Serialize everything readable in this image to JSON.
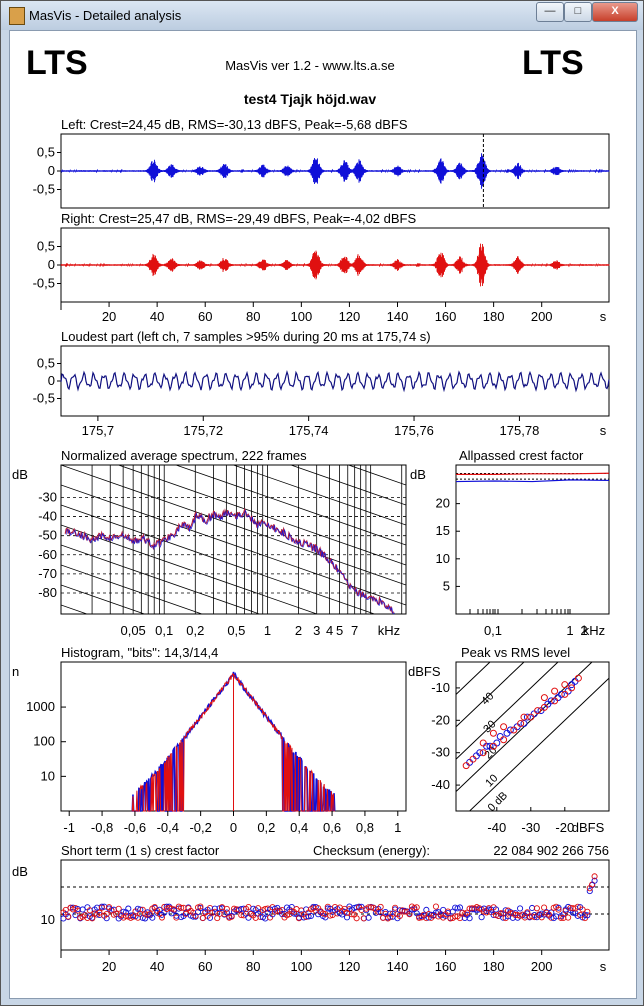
{
  "window": {
    "title": "MasVis - Detailed analysis",
    "minimize_glyph": "—",
    "maximize_glyph": "□",
    "close_glyph": "X"
  },
  "header": {
    "logo_left": "LTS",
    "logo_right": "LTS",
    "app": "MasVis ver 1.2 - www.lts.a.se",
    "filename": "test4 Tjajk höjd.wav"
  },
  "colors": {
    "left": "#1010d8",
    "right": "#e01010",
    "loudest": "#101080",
    "spectrum": "#b02040"
  },
  "chart_data": [
    {
      "id": "left",
      "type": "line",
      "title": "Left: Crest=24,45 dB, RMS=-30,13 dBFS, Peak=-5,68 dBFS",
      "yticks": [
        "0,5",
        "0",
        "-0,5"
      ],
      "ylim": [
        -1,
        1
      ],
      "xlim": [
        0,
        228
      ],
      "marker_x": 175.74,
      "bursts": [
        {
          "t": 38.5,
          "a": 0.3
        },
        {
          "t": 46,
          "a": 0.18
        },
        {
          "t": 58,
          "a": 0.13
        },
        {
          "t": 68,
          "a": 0.2
        },
        {
          "t": 84,
          "a": 0.16
        },
        {
          "t": 94,
          "a": 0.14
        },
        {
          "t": 106,
          "a": 0.42
        },
        {
          "t": 118,
          "a": 0.3
        },
        {
          "t": 124,
          "a": 0.3
        },
        {
          "t": 140,
          "a": 0.14
        },
        {
          "t": 158,
          "a": 0.36
        },
        {
          "t": 166,
          "a": 0.22
        },
        {
          "t": 175,
          "a": 0.5
        },
        {
          "t": 190,
          "a": 0.22
        },
        {
          "t": 206,
          "a": 0.12
        }
      ]
    },
    {
      "id": "right",
      "type": "line",
      "title": "Right: Crest=25,47 dB, RMS=-29,49 dBFS, Peak=-4,02 dBFS",
      "yticks": [
        "0,5",
        "0",
        "-0,5"
      ],
      "ylim": [
        -1,
        1
      ],
      "xlim": [
        0,
        228
      ],
      "xticks": [
        "20",
        "40",
        "60",
        "80",
        "100",
        "120",
        "140",
        "160",
        "180",
        "200",
        "s"
      ],
      "bursts": [
        {
          "t": 38.5,
          "a": 0.3
        },
        {
          "t": 46,
          "a": 0.18
        },
        {
          "t": 58,
          "a": 0.13
        },
        {
          "t": 68,
          "a": 0.2
        },
        {
          "t": 84,
          "a": 0.16
        },
        {
          "t": 94,
          "a": 0.14
        },
        {
          "t": 106,
          "a": 0.46
        },
        {
          "t": 118,
          "a": 0.3
        },
        {
          "t": 124,
          "a": 0.3
        },
        {
          "t": 140,
          "a": 0.14
        },
        {
          "t": 158,
          "a": 0.38
        },
        {
          "t": 166,
          "a": 0.22
        },
        {
          "t": 175,
          "a": 0.62
        },
        {
          "t": 190,
          "a": 0.22
        },
        {
          "t": 206,
          "a": 0.12
        }
      ]
    },
    {
      "id": "loudest",
      "type": "line",
      "title": "Loudest part (left  ch, 7 samples >95% during 20 ms at 175,74 s)",
      "yticks": [
        "0,5",
        "0",
        "-0,5"
      ],
      "ylim": [
        -1,
        1
      ],
      "xlim": [
        175.693,
        175.797
      ],
      "xticks": [
        "175,7",
        "175,72",
        "175,74",
        "175,76",
        "175,78",
        "s"
      ],
      "cycles": 54,
      "amplitude": 0.18
    },
    {
      "id": "spectrum",
      "type": "line",
      "title": "Normalized average spectrum, 222 frames",
      "ylabel": "dB",
      "yticks": [
        "-30",
        "-40",
        "-50",
        "-60",
        "-70",
        "-80"
      ],
      "ylim": [
        -91,
        -13
      ],
      "xlim": [
        0.01,
        22
      ],
      "xticks": [
        "0,05",
        "0,1",
        "0,2",
        "0,5",
        "1",
        "2",
        "3",
        "4",
        "5",
        "7",
        "kHz"
      ],
      "points": [
        [
          0.011,
          -47
        ],
        [
          0.015,
          -49
        ],
        [
          0.02,
          -52
        ],
        [
          0.025,
          -50
        ],
        [
          0.03,
          -51
        ],
        [
          0.04,
          -50
        ],
        [
          0.05,
          -53
        ],
        [
          0.06,
          -51
        ],
        [
          0.08,
          -55
        ],
        [
          0.1,
          -52
        ],
        [
          0.12,
          -49
        ],
        [
          0.15,
          -44
        ],
        [
          0.18,
          -47
        ],
        [
          0.2,
          -39
        ],
        [
          0.25,
          -42
        ],
        [
          0.3,
          -38
        ],
        [
          0.35,
          -41
        ],
        [
          0.4,
          -37
        ],
        [
          0.5,
          -39
        ],
        [
          0.6,
          -38
        ],
        [
          0.7,
          -41
        ],
        [
          0.8,
          -44
        ],
        [
          0.9,
          -42
        ],
        [
          1.0,
          -45
        ],
        [
          1.2,
          -46
        ],
        [
          1.5,
          -49
        ],
        [
          2.0,
          -53
        ],
        [
          2.5,
          -55
        ],
        [
          3.0,
          -57
        ],
        [
          3.5,
          -60
        ],
        [
          4.0,
          -63
        ],
        [
          5.0,
          -69
        ],
        [
          6.0,
          -75
        ],
        [
          7.0,
          -79
        ],
        [
          9.0,
          -82
        ],
        [
          11.0,
          -83
        ],
        [
          14.0,
          -86
        ],
        [
          17.0,
          -90
        ]
      ]
    },
    {
      "id": "allpass",
      "type": "line",
      "title": "Allpassed crest factor",
      "ylabel": "dB",
      "yticks": [
        "20",
        "15",
        "10",
        "5"
      ],
      "ylim": [
        0,
        27
      ],
      "xticks": [
        "0,1",
        "1",
        "2",
        "kHz"
      ],
      "series": [
        {
          "name": "left",
          "values": [
            24.0,
            24.1,
            24.0,
            24.3,
            24.2
          ]
        },
        {
          "name": "right",
          "values": [
            25.3,
            25.3,
            25.4,
            25.4,
            25.5
          ]
        }
      ],
      "reference_levels": [
        24.45,
        25.47
      ]
    },
    {
      "id": "histogram",
      "type": "line",
      "title": "Histogram, \"bits\": 14,3/14,4",
      "ylabel": "n",
      "yticks": [
        "1000",
        "100",
        "10"
      ],
      "ylim": [
        1,
        20000
      ],
      "xlim": [
        -1.05,
        1.05
      ],
      "xticks": [
        "-1",
        "-0,8",
        "-0,6",
        "-0,4",
        "-0,2",
        "0",
        "0,2",
        "0,4",
        "0,6",
        "0,8",
        "1"
      ],
      "peak_count": 9000,
      "extent": 0.62
    },
    {
      "id": "peak_vs_rms",
      "type": "scatter",
      "title": "Peak vs RMS level",
      "ylabel": "dBFS",
      "xlabel": "dBFS",
      "yticks": [
        "-10",
        "-20",
        "-30",
        "-40"
      ],
      "xticks": [
        "-40",
        "-30",
        "-20"
      ],
      "xlim": [
        -52,
        -7
      ],
      "ylim": [
        -48,
        -2
      ],
      "diagonal_labels": [
        "40",
        "30",
        "20",
        "10",
        "0 dB"
      ],
      "series": [
        {
          "name": "left",
          "points": [
            [
              -48,
              -33
            ],
            [
              -46,
              -31
            ],
            [
              -45,
              -30
            ],
            [
              -43,
              -28
            ],
            [
              -42,
              -28
            ],
            [
              -40,
              -27
            ],
            [
              -39,
              -25
            ],
            [
              -37,
              -24
            ],
            [
              -36,
              -23
            ],
            [
              -34,
              -22
            ],
            [
              -32,
              -21
            ],
            [
              -31,
              -19
            ],
            [
              -29,
              -18
            ],
            [
              -27,
              -17
            ],
            [
              -25,
              -15
            ],
            [
              -24,
              -14
            ],
            [
              -22,
              -13
            ],
            [
              -21,
              -12
            ],
            [
              -19,
              -11
            ],
            [
              -18,
              -9
            ],
            [
              -17,
              -8
            ]
          ]
        },
        {
          "name": "right",
          "points": [
            [
              -49,
              -34
            ],
            [
              -47,
              -32
            ],
            [
              -44,
              -30
            ],
            [
              -44,
              -27
            ],
            [
              -41,
              -28
            ],
            [
              -41,
              -24
            ],
            [
              -38,
              -26
            ],
            [
              -38,
              -22
            ],
            [
              -35,
              -23
            ],
            [
              -33,
              -21
            ],
            [
              -32,
              -19
            ],
            [
              -30,
              -19
            ],
            [
              -28,
              -17
            ],
            [
              -26,
              -16
            ],
            [
              -26,
              -13
            ],
            [
              -23,
              -14
            ],
            [
              -23,
              -11
            ],
            [
              -20,
              -12
            ],
            [
              -20,
              -9
            ],
            [
              -18,
              -10
            ],
            [
              -16,
              -7
            ]
          ]
        }
      ]
    },
    {
      "id": "short_term_crest",
      "type": "scatter",
      "title": "Short term (1 s) crest factor",
      "checksum_label": "Checksum (energy):",
      "checksum_value": "22 084 902 266 756",
      "ylabel": "dB",
      "yticks": [
        "10"
      ],
      "ylim": [
        0,
        30
      ],
      "xlim": [
        0,
        228
      ],
      "reference_lines": [
        12,
        21
      ],
      "xticks": [
        "20",
        "40",
        "60",
        "80",
        "100",
        "120",
        "140",
        "160",
        "180",
        "200",
        "s"
      ],
      "seconds": 222,
      "mean": 12.5
    }
  ]
}
